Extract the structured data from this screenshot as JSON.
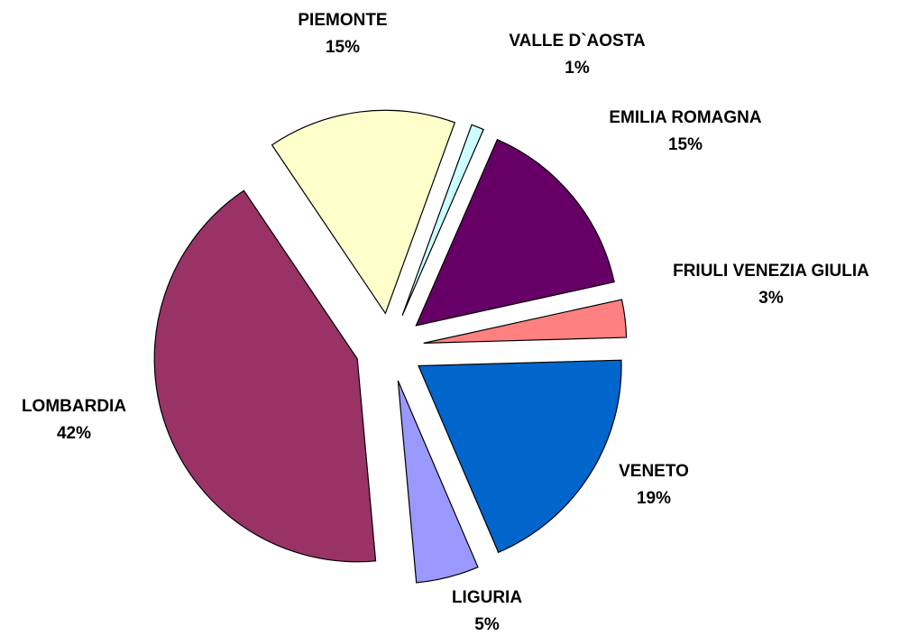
{
  "chart_data": {
    "type": "pie",
    "categories": [
      "VALLE D`AOSTA",
      "EMILIA ROMAGNA",
      "FRIULI VENEZIA GIULIA",
      "VENETO",
      "LIGURIA",
      "LOMBARDIA",
      "PIEMONTE"
    ],
    "values": [
      1,
      15,
      3,
      19,
      5,
      42,
      15
    ],
    "value_labels": [
      "1%",
      "15%",
      "3%",
      "19%",
      "5%",
      "42%",
      "15%"
    ],
    "colors": [
      "#ccffff",
      "#660066",
      "#ff8080",
      "#0066cc",
      "#9999ff",
      "#993366",
      "#ffffcc"
    ]
  }
}
